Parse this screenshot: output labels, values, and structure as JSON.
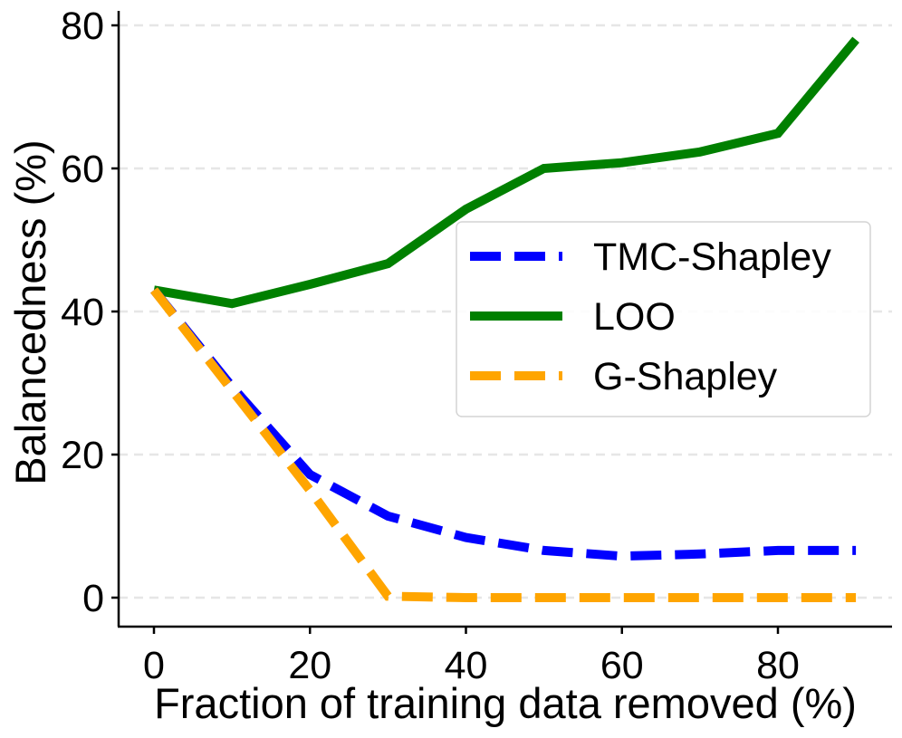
{
  "chart_data": {
    "type": "line",
    "title": "",
    "xlabel": "Fraction of training data removed (%)",
    "ylabel": "Balancedness (%)",
    "x": [
      0,
      10,
      20,
      30,
      40,
      50,
      60,
      70,
      80,
      90
    ],
    "xlim": [
      -4.5,
      94.5
    ],
    "ylim": [
      -4,
      82
    ],
    "xticks": [
      0,
      20,
      40,
      60,
      80
    ],
    "yticks": [
      0,
      20,
      40,
      60,
      80
    ],
    "xtick_labels": [
      "0",
      "20",
      "40",
      "60",
      "80"
    ],
    "ytick_labels": [
      "0",
      "20",
      "40",
      "60",
      "80"
    ],
    "grid": "horizontal dashed",
    "legend_position": "center-right",
    "series": [
      {
        "name": "TMC-Shapley",
        "color": "#0000ff",
        "style": "dashed",
        "values": [
          43.0,
          29.5,
          17.2,
          11.4,
          8.4,
          6.6,
          5.8,
          6.1,
          6.6,
          6.6
        ]
      },
      {
        "name": "LOO",
        "color": "#008000",
        "style": "solid",
        "values": [
          43.0,
          41.1,
          43.8,
          46.7,
          54.3,
          60.0,
          60.8,
          62.3,
          64.9,
          78.0
        ]
      },
      {
        "name": "G-Shapley",
        "color": "#ffa500",
        "style": "dashed",
        "values": [
          43.0,
          29.0,
          15.0,
          0.2,
          0.0,
          0.0,
          0.0,
          0.0,
          0.0,
          0.0
        ]
      }
    ]
  }
}
